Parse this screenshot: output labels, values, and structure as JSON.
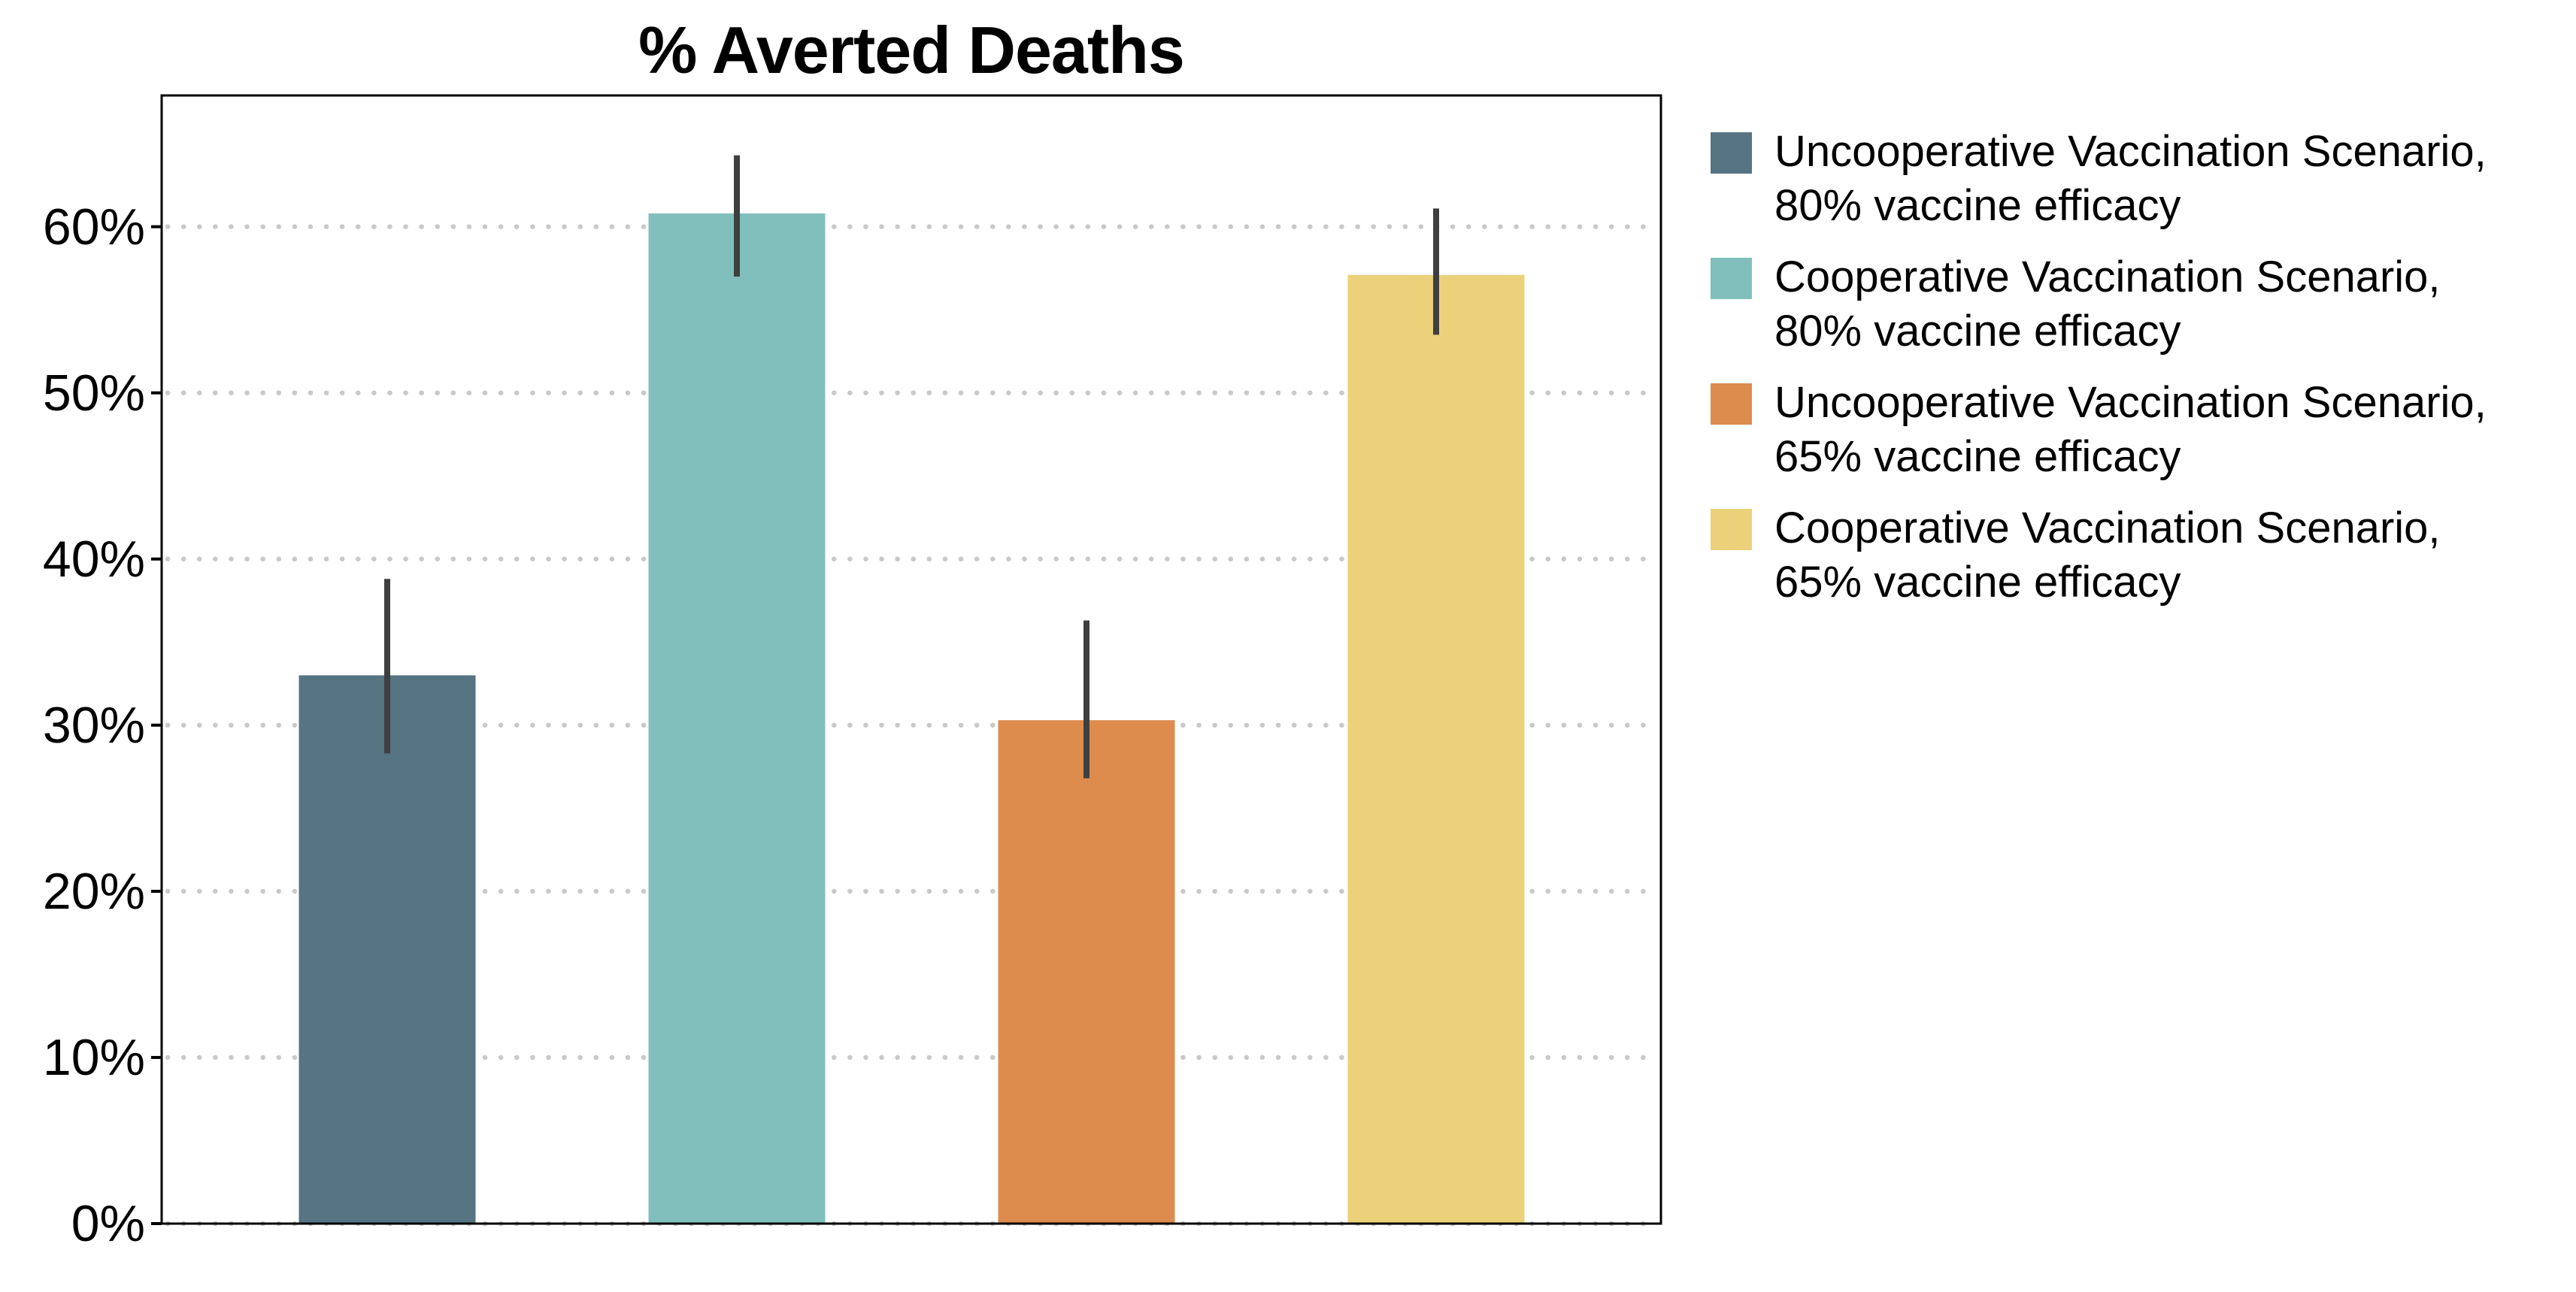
{
  "chart_data": {
    "type": "bar",
    "title": "% Averted Deaths",
    "xlabel": "",
    "ylabel": "",
    "ylim": [
      0,
      67.9
    ],
    "y_tick_labels": [
      "0%",
      "10%",
      "20%",
      "30%",
      "40%",
      "50%",
      "60%"
    ],
    "y_tick_values": [
      0,
      10,
      20,
      30,
      40,
      50,
      60
    ],
    "grid": "horizontal-dotted",
    "legend_position": "right",
    "error_bars": true,
    "bars": [
      {
        "label": "Uncooperative Vaccination Scenario, 80% vaccine efficacy",
        "legend_line1": "Uncooperative Vaccination Scenario,",
        "legend_line2": "80% vaccine efficacy",
        "value_pct": 33.0,
        "ci_low_pct": 28.3,
        "ci_high_pct": 38.8,
        "color": "#567481"
      },
      {
        "label": "Cooperative Vaccination Scenario, 80% vaccine efficacy",
        "legend_line1": "Cooperative Vaccination Scenario,",
        "legend_line2": "80% vaccine efficacy",
        "value_pct": 60.8,
        "ci_low_pct": 57.0,
        "ci_high_pct": 64.3,
        "color": "#81bfbc"
      },
      {
        "label": "Uncooperative Vaccination Scenario, 65% vaccine efficacy",
        "legend_line1": "Uncooperative Vaccination Scenario,",
        "legend_line2": "65% vaccine efficacy",
        "value_pct": 30.3,
        "ci_low_pct": 26.8,
        "ci_high_pct": 36.3,
        "color": "#dd8c4e"
      },
      {
        "label": "Cooperative Vaccination Scenario, 65% vaccine efficacy",
        "legend_line1": "Cooperative Vaccination Scenario,",
        "legend_line2": "65% vaccine efficacy",
        "value_pct": 57.1,
        "ci_low_pct": 53.5,
        "ci_high_pct": 61.1,
        "color": "#ecd17a"
      }
    ],
    "error_bar_color": "#3f3f3f",
    "grid_color": "#c9c9c9",
    "axis_color": "#000000",
    "background_color": "#ffffff"
  }
}
